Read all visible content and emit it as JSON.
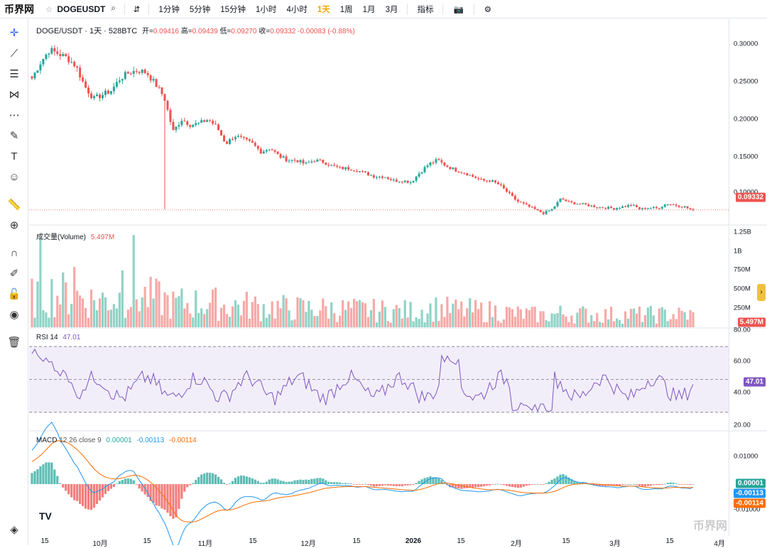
{
  "topbar": {
    "logo": "币界网",
    "symbol": "DOGEUSDT",
    "intervals": [
      "1分钟",
      "5分钟",
      "15分钟",
      "1小时",
      "4小时",
      "1天",
      "1周",
      "1月",
      "3月"
    ],
    "active_interval": "1天",
    "indicators_label": "指标"
  },
  "legend": {
    "pair": "DOGE/USDT · 1天 · 528BTC",
    "open_label": "开=",
    "open": "0.09416",
    "high_label": "高=",
    "high": "0.09439",
    "low_label": "低=",
    "low": "0.09270",
    "close_label": "收=",
    "close": "0.09332",
    "change": "-0.00083 (-0.88%)"
  },
  "volume_legend": {
    "name": "成交量(Volume)",
    "value": "5.497M"
  },
  "rsi_legend": {
    "name": "RSI",
    "period": "14",
    "value": "47.01"
  },
  "macd_legend": {
    "name": "MACD",
    "params": "12 26 close 9",
    "v1": "0.00001",
    "v2": "-0.00113",
    "v3": "-0.00114"
  },
  "price_axis": [
    "0.30000",
    "0.25000",
    "0.20000",
    "0.15000",
    "0.10000"
  ],
  "price_tag": "0.09332",
  "volume_axis": [
    "1.25B",
    "1B",
    "750M",
    "500M",
    "250M"
  ],
  "volume_tag": "5.497M",
  "rsi_axis": [
    "80.00",
    "60.00",
    "40.00",
    "20.00"
  ],
  "rsi_tag": "47.01",
  "macd_axis": [
    "0.01000",
    "-0.01000"
  ],
  "macd_tags": [
    "0.00001",
    "-0.00113",
    "-0.00114"
  ],
  "x_labels": [
    "15",
    "10月",
    "15",
    "11月",
    "15",
    "12月",
    "15",
    "2026",
    "15",
    "2月",
    "15",
    "3月",
    "15",
    "4月"
  ],
  "watermark": "币界网",
  "colors": {
    "up": "#26a69a",
    "down": "#ef5350",
    "rsi": "#7e57c2",
    "macd": "#2196f3",
    "signal": "#ff6d00",
    "accent": "#f0a500"
  },
  "chart_data": {
    "type": "candlestick",
    "title": "DOGE/USDT · 1天 · 528BTC",
    "close_series": [
      0.255,
      0.275,
      0.29,
      0.285,
      0.28,
      0.27,
      0.245,
      0.23,
      0.235,
      0.24,
      0.255,
      0.262,
      0.265,
      0.262,
      0.248,
      0.232,
      0.19,
      0.205,
      0.198,
      0.2,
      0.205,
      0.195,
      0.175,
      0.185,
      0.18,
      0.175,
      0.165,
      0.17,
      0.16,
      0.155,
      0.155,
      0.15,
      0.155,
      0.153,
      0.148,
      0.145,
      0.145,
      0.142,
      0.138,
      0.135,
      0.135,
      0.13,
      0.13,
      0.128,
      0.14,
      0.15,
      0.155,
      0.148,
      0.143,
      0.14,
      0.135,
      0.13,
      0.13,
      0.125,
      0.115,
      0.105,
      0.1,
      0.095,
      0.09,
      0.095,
      0.108,
      0.103,
      0.102,
      0.1,
      0.098,
      0.097,
      0.096,
      0.098,
      0.1,
      0.095,
      0.097,
      0.096,
      0.102,
      0.1,
      0.098,
      0.093
    ],
    "ylim": [
      0.08,
      0.31
    ],
    "rsi": {
      "period": 14,
      "last": 47.01,
      "bands": [
        30,
        50,
        70
      ]
    },
    "macd": {
      "fast": 12,
      "slow": 26,
      "signal": 9,
      "hist": 1e-05,
      "macd": -0.00113,
      "signal_value": -0.00114
    }
  }
}
